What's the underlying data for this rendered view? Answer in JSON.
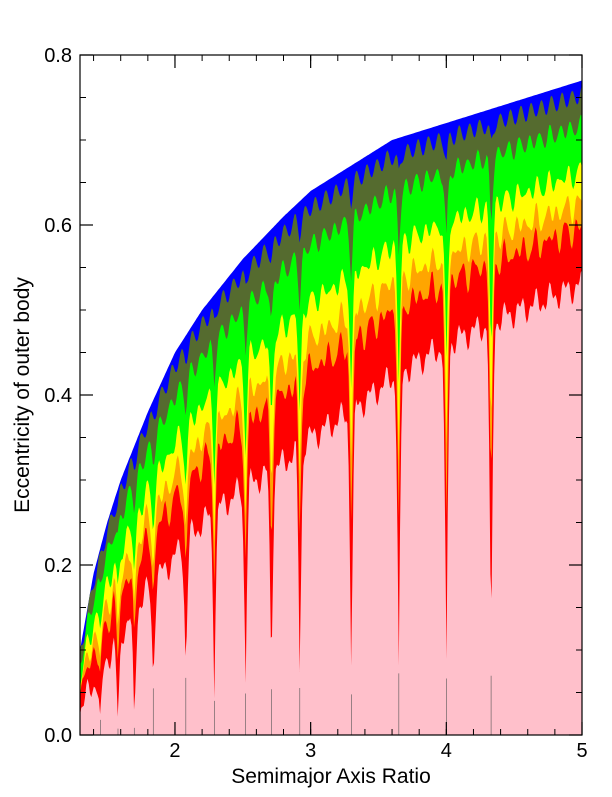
{
  "chart_data": {
    "type": "heatmap",
    "title": "",
    "xlabel": "Semimajor Axis Ratio",
    "ylabel": "Eccentricity of outer body",
    "xlim": [
      1.3,
      5.0
    ],
    "ylim": [
      0.0,
      0.8
    ],
    "x_ticks": [
      {
        "value": 2,
        "label": "2"
      },
      {
        "value": 3,
        "label": "3"
      },
      {
        "value": 4,
        "label": "4"
      },
      {
        "value": 5,
        "label": "5"
      }
    ],
    "y_ticks": [
      {
        "value": 0.0,
        "label": "0.0"
      },
      {
        "value": 0.2,
        "label": "0.2"
      },
      {
        "value": 0.4,
        "label": "0.4"
      },
      {
        "value": 0.6,
        "label": "0.6"
      },
      {
        "value": 0.8,
        "label": "0.8"
      }
    ],
    "x_minor_step": 0.2,
    "y_minor_step": 0.05,
    "envelope_x": [
      1.3,
      1.4,
      1.5,
      1.6,
      1.8,
      2.0,
      2.2,
      2.5,
      2.8,
      3.0,
      3.3,
      3.6,
      4.0,
      4.4,
      4.7,
      5.0
    ],
    "envelope_e": [
      0.1,
      0.19,
      0.25,
      0.3,
      0.38,
      0.45,
      0.5,
      0.56,
      0.61,
      0.64,
      0.67,
      0.7,
      0.72,
      0.74,
      0.755,
      0.77
    ],
    "stable_boundary_e": [
      0.03,
      0.06,
      0.09,
      0.12,
      0.17,
      0.21,
      0.25,
      0.29,
      0.32,
      0.35,
      0.38,
      0.42,
      0.46,
      0.49,
      0.51,
      0.53
    ],
    "band_colors": [
      "#0000ff",
      "#556b2f",
      "#00ff00",
      "#ffff00",
      "#ffa500",
      "#ff0000",
      "#ffc0cb"
    ],
    "resonances": [
      {
        "x": 1.45,
        "depth": 0.0
      },
      {
        "x": 1.58,
        "depth": 0.0
      },
      {
        "x": 1.7,
        "depth": 0.0
      },
      {
        "x": 1.84,
        "depth": 0.06
      },
      {
        "x": 2.08,
        "depth": 0.07
      },
      {
        "x": 2.29,
        "depth": 0.06
      },
      {
        "x": 2.52,
        "depth": 0.06
      },
      {
        "x": 2.71,
        "depth": 0.06
      },
      {
        "x": 2.92,
        "depth": 0.06
      },
      {
        "x": 3.3,
        "depth": 0.06
      },
      {
        "x": 3.65,
        "depth": 0.06
      },
      {
        "x": 4.0,
        "depth": 0.05
      },
      {
        "x": 4.33,
        "depth": 0.05
      }
    ]
  }
}
